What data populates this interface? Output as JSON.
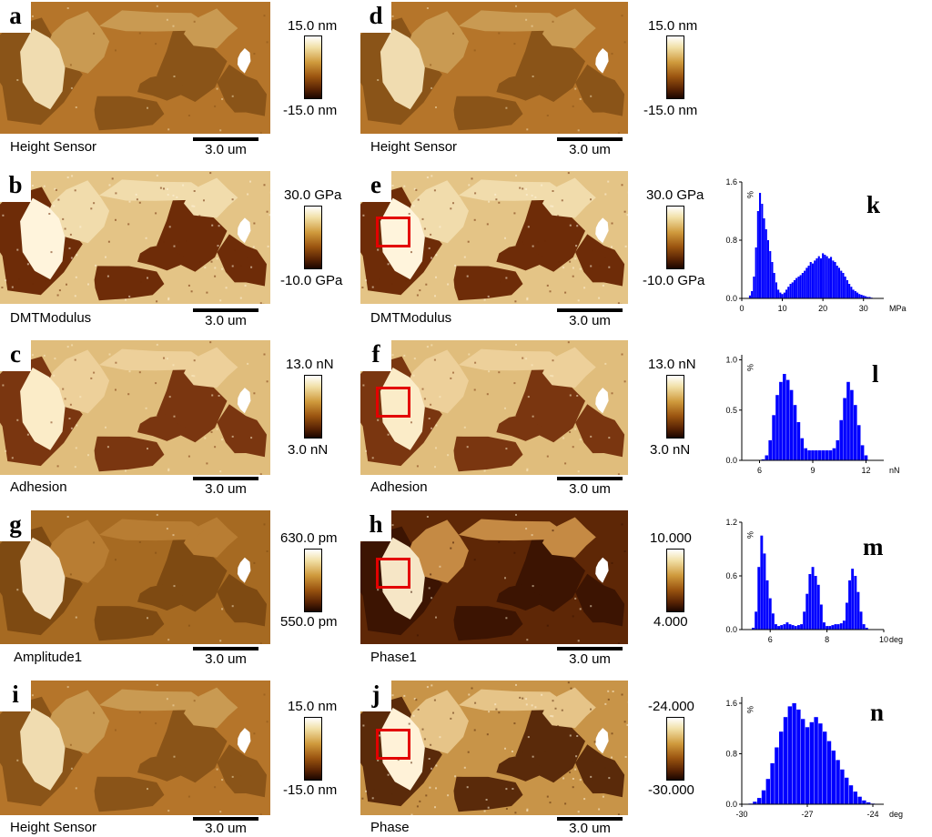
{
  "panels": {
    "a": {
      "letter": "a",
      "sensor": "Height Sensor",
      "scale": "3.0 um",
      "cb_top": "15.0 nm",
      "cb_bottom": "-15.0 nm",
      "palette": "height"
    },
    "d": {
      "letter": "d",
      "sensor": "Height Sensor",
      "scale": "3.0 um",
      "cb_top": "15.0 nm",
      "cb_bottom": "-15.0 nm",
      "palette": "height"
    },
    "b": {
      "letter": "b",
      "sensor": "DMTModulus",
      "scale": "3.0 um",
      "cb_top": "30.0 GPa",
      "cb_bottom": "-10.0 GPa",
      "palette": "modulus"
    },
    "e": {
      "letter": "e",
      "sensor": "DMTModulus",
      "scale": "3.0 um",
      "cb_top": "30.0 GPa",
      "cb_bottom": "-10.0 GPa",
      "palette": "modulus"
    },
    "c": {
      "letter": "c",
      "sensor": "Adhesion",
      "scale": "3.0 um",
      "cb_top": "13.0 nN",
      "cb_bottom": "3.0 nN",
      "palette": "adhesion"
    },
    "f": {
      "letter": "f",
      "sensor": "Adhesion",
      "scale": "3.0 um",
      "cb_top": "13.0 nN",
      "cb_bottom": "3.0 nN",
      "palette": "adhesion"
    },
    "g": {
      "letter": "g",
      "sensor": "Amplitude1",
      "scale": "3.0 um",
      "cb_top": "630.0 pm",
      "cb_bottom": "550.0 pm",
      "palette": "amplitude"
    },
    "h": {
      "letter": "h",
      "sensor": "Phase1",
      "scale": "3.0 um",
      "cb_top": "10.000",
      "cb_bottom": "4.000",
      "palette": "phase1"
    },
    "i": {
      "letter": "i",
      "sensor": "Height Sensor",
      "scale": "3.0 um",
      "cb_top": "15.0 nm",
      "cb_bottom": "-15.0 nm",
      "palette": "height"
    },
    "j": {
      "letter": "j",
      "sensor": "Phase",
      "scale": "3.0 um",
      "cb_top": "-24.000",
      "cb_bottom": "-30.000",
      "palette": "phase"
    }
  },
  "chart_data": [
    {
      "type": "bar",
      "panel": "k",
      "letter": "k",
      "ylabel": "%",
      "xunit": "MPa",
      "color": "#0000ff",
      "xlim": [
        0,
        35
      ],
      "ylim": [
        0,
        1.6
      ],
      "xticks": [
        0,
        10,
        20,
        30
      ],
      "yticks": [
        0.0,
        0.8,
        1.6
      ],
      "x": [
        2,
        2.5,
        3,
        3.5,
        4,
        4.5,
        5,
        5.5,
        6,
        6.5,
        7,
        7.5,
        8,
        8.5,
        9,
        9.5,
        10,
        10.5,
        11,
        11.5,
        12,
        12.5,
        13,
        13.5,
        14,
        14.5,
        15,
        15.5,
        16,
        16.5,
        17,
        17.5,
        18,
        18.5,
        19,
        19.5,
        20,
        20.5,
        21,
        21.5,
        22,
        22.5,
        23,
        23.5,
        24,
        24.5,
        25,
        25.5,
        26,
        26.5,
        27,
        27.5,
        28,
        28.5,
        29,
        29.5,
        30,
        30.5,
        31,
        31.5,
        32
      ],
      "values": [
        0.04,
        0.1,
        0.3,
        0.7,
        1.2,
        1.45,
        1.3,
        1.1,
        0.95,
        0.8,
        0.65,
        0.5,
        0.35,
        0.22,
        0.12,
        0.08,
        0.06,
        0.08,
        0.12,
        0.16,
        0.2,
        0.22,
        0.25,
        0.28,
        0.3,
        0.32,
        0.35,
        0.38,
        0.42,
        0.45,
        0.5,
        0.48,
        0.52,
        0.55,
        0.58,
        0.55,
        0.62,
        0.6,
        0.58,
        0.55,
        0.57,
        0.52,
        0.5,
        0.45,
        0.42,
        0.38,
        0.35,
        0.3,
        0.25,
        0.2,
        0.16,
        0.12,
        0.1,
        0.08,
        0.06,
        0.05,
        0.04,
        0.03,
        0.02,
        0.02,
        0.01
      ]
    },
    {
      "type": "bar",
      "panel": "l",
      "letter": "l",
      "ylabel": "%",
      "xunit": "nN",
      "color": "#0000ff",
      "xlim": [
        5,
        13
      ],
      "ylim": [
        0,
        1.05
      ],
      "xticks": [
        6,
        9,
        12
      ],
      "yticks": [
        0.0,
        0.5,
        1.0
      ],
      "x": [
        6.2,
        6.4,
        6.6,
        6.8,
        7.0,
        7.2,
        7.4,
        7.6,
        7.8,
        8.0,
        8.2,
        8.4,
        8.6,
        8.8,
        9.0,
        9.2,
        9.4,
        9.6,
        9.8,
        10.0,
        10.2,
        10.4,
        10.6,
        10.8,
        11.0,
        11.2,
        11.4,
        11.6,
        11.8,
        12.0
      ],
      "values": [
        0.01,
        0.05,
        0.2,
        0.45,
        0.65,
        0.78,
        0.86,
        0.8,
        0.7,
        0.55,
        0.38,
        0.22,
        0.12,
        0.1,
        0.1,
        0.1,
        0.1,
        0.1,
        0.1,
        0.1,
        0.12,
        0.2,
        0.4,
        0.62,
        0.78,
        0.7,
        0.55,
        0.35,
        0.15,
        0.05
      ]
    },
    {
      "type": "bar",
      "panel": "m",
      "letter": "m",
      "ylabel": "%",
      "xunit": "deg",
      "color": "#0000ff",
      "xlim": [
        5,
        10
      ],
      "ylim": [
        0,
        1.2
      ],
      "xticks": [
        6,
        8,
        10
      ],
      "yticks": [
        0.0,
        0.6,
        1.2
      ],
      "x": [
        5.4,
        5.5,
        5.6,
        5.7,
        5.8,
        5.9,
        6.0,
        6.1,
        6.2,
        6.3,
        6.4,
        6.5,
        6.6,
        6.7,
        6.8,
        6.9,
        7.0,
        7.1,
        7.2,
        7.3,
        7.4,
        7.5,
        7.6,
        7.7,
        7.8,
        7.9,
        8.0,
        8.1,
        8.2,
        8.3,
        8.4,
        8.5,
        8.6,
        8.7,
        8.8,
        8.9,
        9.0,
        9.1,
        9.2,
        9.3,
        9.4
      ],
      "values": [
        0.02,
        0.2,
        0.7,
        1.05,
        0.85,
        0.55,
        0.35,
        0.18,
        0.06,
        0.04,
        0.05,
        0.06,
        0.08,
        0.06,
        0.05,
        0.04,
        0.05,
        0.06,
        0.2,
        0.4,
        0.62,
        0.7,
        0.6,
        0.5,
        0.28,
        0.08,
        0.04,
        0.04,
        0.05,
        0.06,
        0.06,
        0.07,
        0.1,
        0.3,
        0.55,
        0.68,
        0.6,
        0.42,
        0.2,
        0.06,
        0.02
      ]
    },
    {
      "type": "bar",
      "panel": "n",
      "letter": "n",
      "ylabel": "%",
      "xunit": "deg",
      "color": "#0000ff",
      "xlim": [
        -30,
        -23.5
      ],
      "ylim": [
        0,
        1.7
      ],
      "xticks": [
        -30,
        -27,
        -24
      ],
      "yticks": [
        0.0,
        0.8,
        1.6
      ],
      "x": [
        -29.6,
        -29.4,
        -29.2,
        -29.0,
        -28.8,
        -28.6,
        -28.4,
        -28.2,
        -28.0,
        -27.8,
        -27.6,
        -27.4,
        -27.2,
        -27.0,
        -26.8,
        -26.6,
        -26.4,
        -26.2,
        -26.0,
        -25.8,
        -25.6,
        -25.4,
        -25.2,
        -25.0,
        -24.8,
        -24.6,
        -24.4,
        -24.2,
        -24.0
      ],
      "values": [
        0.01,
        0.04,
        0.1,
        0.22,
        0.4,
        0.65,
        0.9,
        1.15,
        1.38,
        1.55,
        1.6,
        1.5,
        1.35,
        1.22,
        1.3,
        1.38,
        1.28,
        1.15,
        1.0,
        0.85,
        0.7,
        0.55,
        0.42,
        0.3,
        0.2,
        0.12,
        0.06,
        0.03,
        0.01
      ]
    }
  ]
}
